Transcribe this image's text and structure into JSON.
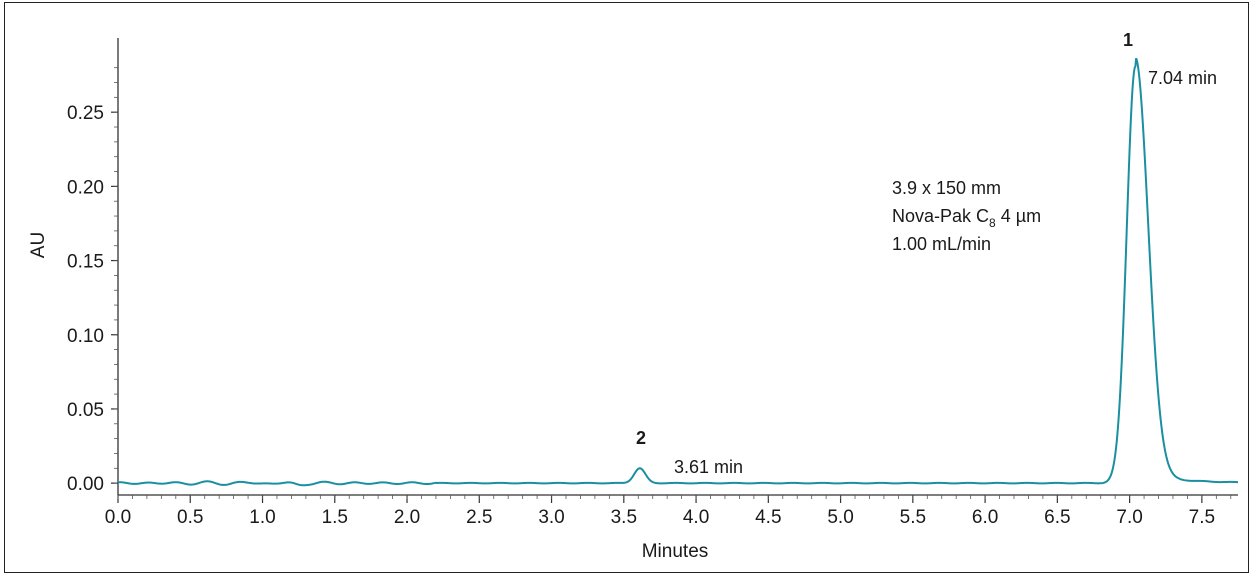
{
  "chart_data": {
    "type": "line",
    "xlabel": "Minutes",
    "ylabel": "AU",
    "xlim": [
      0.0,
      7.75
    ],
    "ylim": [
      -0.008,
      0.3
    ],
    "x_ticks": [
      "0.0",
      "0.5",
      "1.0",
      "1.5",
      "2.0",
      "2.5",
      "3.0",
      "3.5",
      "4.0",
      "4.5",
      "5.0",
      "5.5",
      "6.0",
      "6.5",
      "7.0",
      "7.5"
    ],
    "y_ticks": [
      "0.00",
      "0.05",
      "0.10",
      "0.15",
      "0.20",
      "0.25"
    ],
    "line_color": "#1a8fa0",
    "peaks": [
      {
        "label": "2",
        "retention_time": 3.61,
        "height": 0.01,
        "time_label": "3.61 min"
      },
      {
        "label": "1",
        "retention_time": 7.04,
        "height": 0.281,
        "time_label": "7.04 min"
      }
    ],
    "method_note": {
      "line1": "3.9 x 150 mm",
      "line2_prefix": "Nova-Pak C",
      "line2_sub": "8",
      "line2_suffix": " 4 µm",
      "line3": "1.00 mL/min"
    }
  }
}
